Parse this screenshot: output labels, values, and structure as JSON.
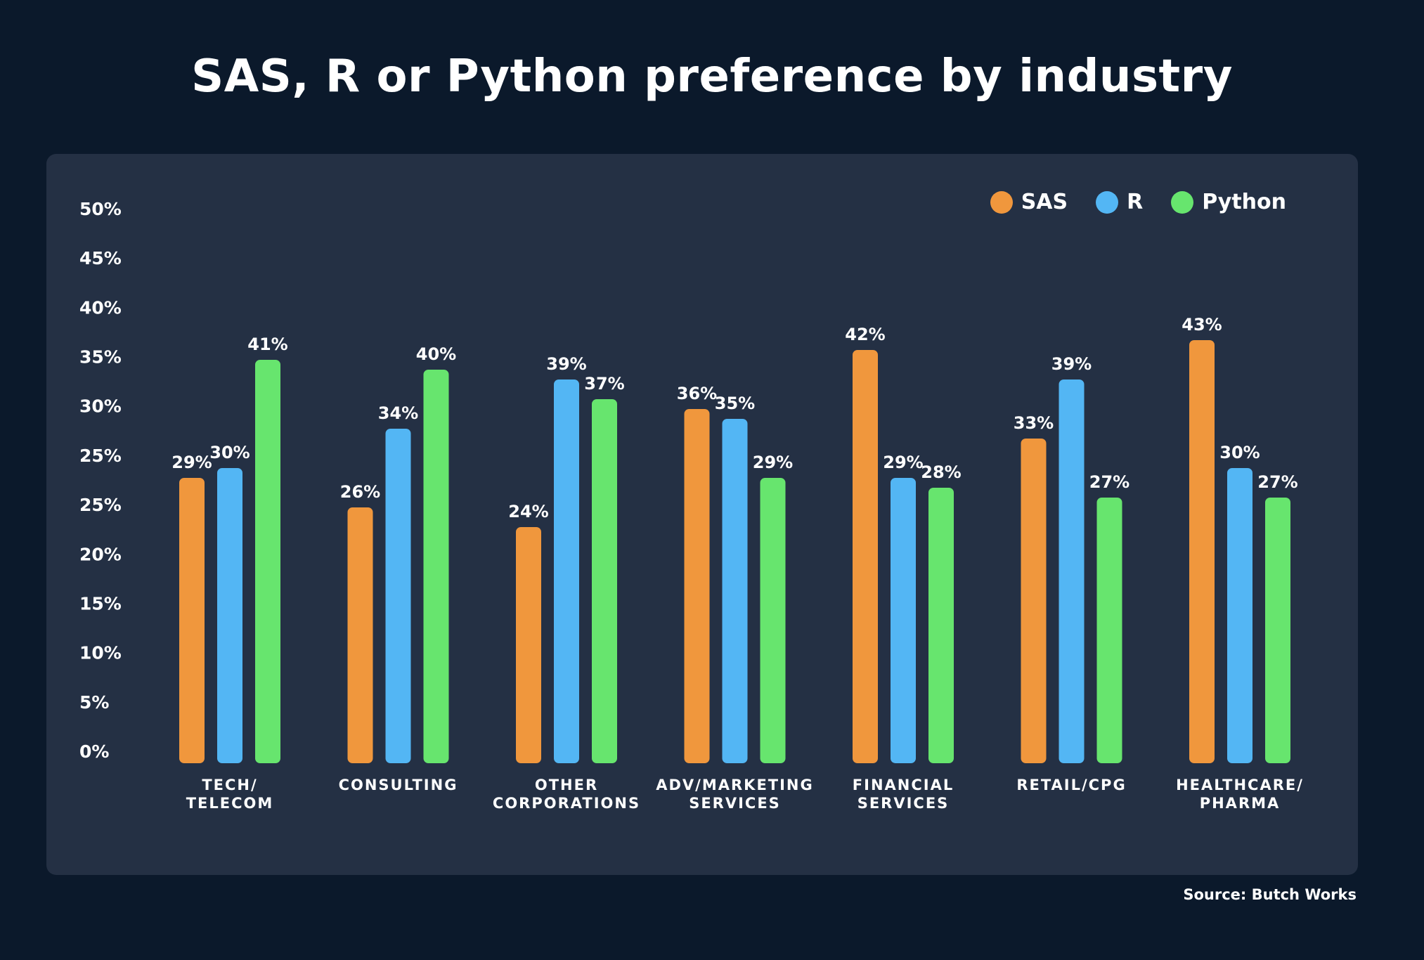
{
  "title": "SAS, R or Python preference by industry",
  "source": "Source: Butch Works",
  "colors": {
    "background": "#0b192b",
    "panel": "#243044",
    "text": "#ffffff",
    "SAS": "#f0973d",
    "R": "#53b6f4",
    "Python": "#67e56e"
  },
  "chart_data": {
    "type": "bar",
    "title": "SAS, R or Python preference by industry",
    "xlabel": "",
    "ylabel": "",
    "ylim": [
      0,
      50
    ],
    "y_tick_labels": [
      "0%",
      "5%",
      "10%",
      "15%",
      "20%",
      "25%",
      "25%",
      "30%",
      "35%",
      "40%",
      "45%",
      "50%"
    ],
    "categories": [
      [
        "TECH/",
        "TELECOM"
      ],
      [
        "CONSULTING"
      ],
      [
        "OTHER",
        "CORPORATIONS"
      ],
      [
        "ADV/MARKETING",
        "SERVICES"
      ],
      [
        "FINANCIAL",
        "SERVICES"
      ],
      [
        "RETAIL/CPG"
      ],
      [
        "HEALTHCARE/",
        "PHARMA"
      ]
    ],
    "series": [
      {
        "name": "SAS",
        "color": "#f0973d",
        "values": [
          29,
          26,
          24,
          36,
          42,
          33,
          43
        ],
        "labels": [
          "29%",
          "26%",
          "24%",
          "36%",
          "42%",
          "33%",
          "43%"
        ]
      },
      {
        "name": "R",
        "color": "#53b6f4",
        "values": [
          30,
          34,
          39,
          35,
          29,
          39,
          30
        ],
        "labels": [
          "30%",
          "34%",
          "39%",
          "35%",
          "29%",
          "39%",
          "30%"
        ]
      },
      {
        "name": "Python",
        "color": "#67e56e",
        "values": [
          41,
          40,
          37,
          29,
          28,
          27,
          27
        ],
        "labels": [
          "41%",
          "40%",
          "37%",
          "29%",
          "28%",
          "27%",
          "27%"
        ]
      }
    ],
    "legend": {
      "position": "top-right",
      "entries": [
        "SAS",
        "R",
        "Python"
      ]
    },
    "grid": false
  }
}
